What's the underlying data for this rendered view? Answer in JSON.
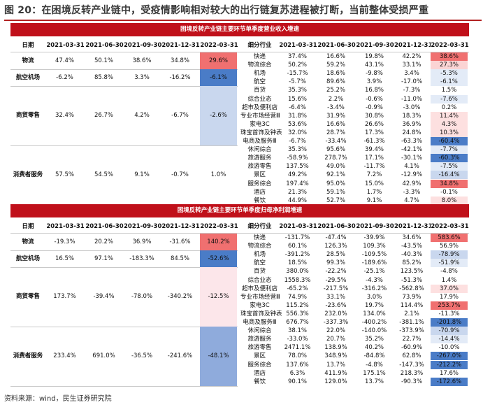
{
  "title": "图 20：在困境反转产业链中，受疫情影响相对较大的出行链复苏进程被打断，当前整体受损严重",
  "footer": "资料来源：wind，民生证券研究院",
  "colors": {
    "banner": "#c0101a",
    "red_strong": "#f07070",
    "red_light": "#fbd4d4",
    "blue_strong": "#4a7cc7",
    "blue_light": "#c9d7ee",
    "pink_cell": "#fce6ea"
  },
  "sections": [
    {
      "banner": "困境反转产业链主要环节单季度营业收入增速",
      "left_header": [
        "日期",
        "2021-03-31",
        "2021-06-30",
        "2021-09-30",
        "2021-12-31",
        "2022-03-31"
      ],
      "right_header": [
        "细分行业",
        "2021-03-31",
        "2021-06-30",
        "2021-09-30",
        "2021-12-31",
        "2022-03-31"
      ],
      "left_rows": [
        {
          "label": "物流",
          "values": [
            "47.4%",
            "50.1%",
            "38.6%",
            "34.8%",
            "29.6%"
          ],
          "hl": "red_strong",
          "sub": 2
        },
        {
          "label": "航空机场",
          "values": [
            "-6.2%",
            "85.8%",
            "3.3%",
            "-16.2%",
            "-6.1%"
          ],
          "hl": "blue_strong",
          "sub": 2
        },
        {
          "label": "商贸零售",
          "values": [
            "32.4%",
            "26.7%",
            "4.2%",
            "-6.7%",
            "-2.6%"
          ],
          "hl": "blue_light",
          "sub": 7
        },
        {
          "label": "消费者服务",
          "values": [
            "57.5%",
            "54.5%",
            "9.1%",
            "-0.7%",
            "1.0%"
          ],
          "hl": "none",
          "sub": 7
        }
      ],
      "right_rows": [
        {
          "label": "快递",
          "values": [
            "37.4%",
            "16.6%",
            "19.8%",
            "42.2%",
            "38.6%"
          ],
          "hl": "red_strong"
        },
        {
          "label": "物流综合",
          "values": [
            "50.2%",
            "59.2%",
            "43.1%",
            "33.1%",
            "27.3%"
          ],
          "hl": "red_light"
        },
        {
          "label": "机场",
          "values": [
            "-15.7%",
            "18.6%",
            "-9.8%",
            "3.4%",
            "-5.3%"
          ],
          "hl": "blue_pale"
        },
        {
          "label": "航空",
          "values": [
            "-5.7%",
            "89.6%",
            "3.9%",
            "-17.0%",
            "-6.1%"
          ],
          "hl": "blue_pale"
        },
        {
          "label": "百货",
          "values": [
            "35.3%",
            "25.2%",
            "16.8%",
            "-7.3%",
            "1.5%"
          ],
          "hl": "none"
        },
        {
          "label": "综合业态",
          "values": [
            "15.6%",
            "2.2%",
            "-0.6%",
            "-11.0%",
            "-7.6%"
          ],
          "hl": "blue_pale"
        },
        {
          "label": "超市及便利店",
          "values": [
            "-6.4%",
            "-3.4%",
            "-0.9%",
            "-3.0%",
            "0.2%"
          ],
          "hl": "none"
        },
        {
          "label": "专业市场经营Ⅲ",
          "values": [
            "31.8%",
            "31.9%",
            "30.8%",
            "18.3%",
            "11.4%"
          ],
          "hl": "red_pale"
        },
        {
          "label": "家电3C",
          "values": [
            "53.6%",
            "16.6%",
            "26.6%",
            "36.9%",
            "4.3%"
          ],
          "hl": "red_pale"
        },
        {
          "label": "珠宝首饰及钟表",
          "values": [
            "32.0%",
            "28.7%",
            "17.3%",
            "24.8%",
            "10.3%"
          ],
          "hl": "red_pale"
        },
        {
          "label": "电商及服务Ⅲ",
          "values": [
            "-6.7%",
            "-33.4%",
            "-61.3%",
            "-63.3%",
            "-60.4%"
          ],
          "hl": "blue_strong"
        },
        {
          "label": "休闲综合",
          "values": [
            "35.3%",
            "95.6%",
            "39.4%",
            "-42.1%",
            "-7.7%"
          ],
          "hl": "blue_pale"
        },
        {
          "label": "旅游服务",
          "values": [
            "-58.9%",
            "278.7%",
            "17.1%",
            "-30.1%",
            "-60.3%"
          ],
          "hl": "blue_strong"
        },
        {
          "label": "旅游零售",
          "values": [
            "137.5%",
            "49.0%",
            "-11.7%",
            "4.1%",
            "-7.5%"
          ],
          "hl": "blue_pale"
        },
        {
          "label": "景区",
          "values": [
            "49.2%",
            "92.1%",
            "7.2%",
            "-12.9%",
            "-16.4%"
          ],
          "hl": "blue_light"
        },
        {
          "label": "服务综合",
          "values": [
            "197.4%",
            "95.0%",
            "15.0%",
            "42.9%",
            "34.8%"
          ],
          "hl": "red_strong"
        },
        {
          "label": "酒店",
          "values": [
            "21.3%",
            "59.1%",
            "1.7%",
            "-3.3%",
            "-0.1%"
          ],
          "hl": "none"
        },
        {
          "label": "餐饮",
          "values": [
            "44.9%",
            "52.7%",
            "9.1%",
            "4.7%",
            "8.0%"
          ],
          "hl": "red_pale"
        }
      ]
    },
    {
      "banner": "困境反转产业链主要环节单季度归母净利润增速",
      "left_header": [
        "日期",
        "2021-03-31",
        "2021-06-30",
        "2021-09-30",
        "2021-12-31",
        "2022-03-31"
      ],
      "right_header": [
        "细分行业",
        "2021-03-31",
        "2021-06-30",
        "2021-09-30",
        "2021-12-31",
        "2022-03-31"
      ],
      "left_rows": [
        {
          "label": "物流",
          "values": [
            "-19.3%",
            "20.2%",
            "36.9%",
            "-31.6%",
            "140.2%"
          ],
          "hl": "red_strong",
          "sub": 2
        },
        {
          "label": "航空机场",
          "values": [
            "16.5%",
            "97.1%",
            "-183.3%",
            "84.5%",
            "-52.6%"
          ],
          "hl": "blue_strong",
          "sub": 2
        },
        {
          "label": "商贸零售",
          "values": [
            "173.7%",
            "-39.4%",
            "-78.0%",
            "-340.2%",
            "-12.5%"
          ],
          "hl": "pink_cell",
          "sub": 7
        },
        {
          "label": "消费者服务",
          "values": [
            "233.4%",
            "691.0%",
            "-36.5%",
            "-241.6%",
            "-48.1%"
          ],
          "hl": "blue_mid",
          "sub": 7
        }
      ],
      "right_rows": [
        {
          "label": "快递",
          "values": [
            "-131.7%",
            "-47.4%",
            "-39.9%",
            "34.6%",
            "583.6%"
          ],
          "hl": "red_strong"
        },
        {
          "label": "物流综合",
          "values": [
            "60.1%",
            "126.3%",
            "109.3%",
            "-43.5%",
            "56.9%"
          ],
          "hl": "none"
        },
        {
          "label": "机场",
          "values": [
            "-391.2%",
            "28.5%",
            "-109.5%",
            "-40.3%",
            "-78.9%"
          ],
          "hl": "blue_light"
        },
        {
          "label": "航空",
          "values": [
            "18.5%",
            "99.3%",
            "-189.6%",
            "85.2%",
            "-51.9%"
          ],
          "hl": "blue_pale"
        },
        {
          "label": "百货",
          "values": [
            "380.0%",
            "-22.2%",
            "-25.1%",
            "123.5%",
            "-4.8%"
          ],
          "hl": "none"
        },
        {
          "label": "综合业态",
          "values": [
            "1558.3%",
            "-29.5%",
            "-4.3%",
            "-51.3%",
            "1.4%"
          ],
          "hl": "none"
        },
        {
          "label": "超市及便利店",
          "values": [
            "-65.2%",
            "-217.5%",
            "-316.2%",
            "-562.8%",
            "37.0%"
          ],
          "hl": "red_pale"
        },
        {
          "label": "专业市场经营Ⅲ",
          "values": [
            "74.9%",
            "33.1%",
            "3.0%",
            "73.9%",
            "17.9%"
          ],
          "hl": "none"
        },
        {
          "label": "家电3C",
          "values": [
            "115.2%",
            "-23.6%",
            "19.7%",
            "114.4%",
            "253.7%"
          ],
          "hl": "red_strong"
        },
        {
          "label": "珠宝首饰及钟表",
          "values": [
            "556.3%",
            "232.0%",
            "134.0%",
            "2.1%",
            "-11.3%"
          ],
          "hl": "none"
        },
        {
          "label": "电商及服务Ⅲ",
          "values": [
            "676.7%",
            "-337.3%",
            "-400.2%",
            "-381.1%",
            "-201.8%"
          ],
          "hl": "blue_strong"
        },
        {
          "label": "休闲综合",
          "values": [
            "38.1%",
            "22.0%",
            "-140.0%",
            "-373.9%",
            "-70.9%"
          ],
          "hl": "blue_light"
        },
        {
          "label": "旅游服务",
          "values": [
            "-33.0%",
            "20.7%",
            "35.2%",
            "22.7%",
            "-14.4%"
          ],
          "hl": "blue_pale"
        },
        {
          "label": "旅游零售",
          "values": [
            "2471.1%",
            "138.9%",
            "40.2%",
            "-60.9%",
            "-10.0%"
          ],
          "hl": "none"
        },
        {
          "label": "景区",
          "values": [
            "78.0%",
            "348.9%",
            "-84.8%",
            "62.8%",
            "-267.0%"
          ],
          "hl": "blue_strong"
        },
        {
          "label": "服务综合",
          "values": [
            "137.6%",
            "13.7%",
            "-4.8%",
            "-147.3%",
            "-212.2%"
          ],
          "hl": "blue_strong"
        },
        {
          "label": "酒店",
          "values": [
            "6.3%",
            "411.9%",
            "175.1%",
            "218.3%",
            "17.6%"
          ],
          "hl": "none"
        },
        {
          "label": "餐饮",
          "values": [
            "90.1%",
            "129.0%",
            "13.7%",
            "-90.3%",
            "-172.6%"
          ],
          "hl": "blue_strong"
        }
      ]
    }
  ]
}
